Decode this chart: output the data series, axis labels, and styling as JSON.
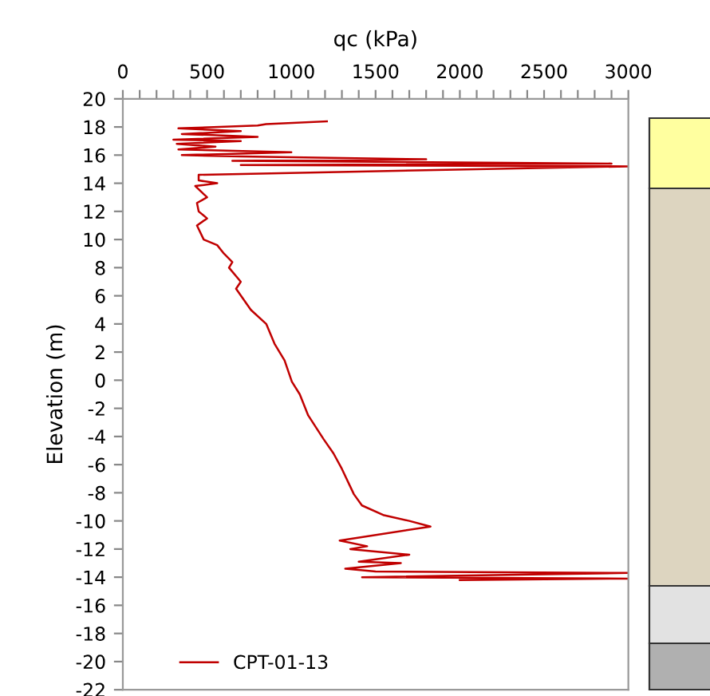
{
  "chart_data": {
    "type": "line",
    "xlabel": "qc (kPa)",
    "ylabel": "Elevation (m)",
    "series": [
      {
        "name": "CPT-01-13",
        "color": "#c00000",
        "x": [
          1211,
          850,
          800,
          330,
          700,
          350,
          800,
          300,
          700,
          320,
          550,
          330,
          1000,
          350,
          700,
          1800,
          650,
          2900,
          700,
          3000,
          2100,
          450,
          450,
          560,
          430,
          500,
          440,
          450,
          500,
          440,
          480,
          560,
          600,
          650,
          630,
          700,
          672,
          760,
          851,
          900,
          960,
          1003,
          1050,
          1100,
          1192,
          1250,
          1300,
          1371,
          1419,
          1550,
          1700,
          1826,
          1287,
          1450,
          1350,
          1700,
          1400,
          1650,
          1320,
          1500,
          3000,
          1420,
          3000,
          2000
        ],
        "values": [
          18.4,
          18.2,
          18.1,
          17.9,
          17.7,
          17.5,
          17.3,
          17.1,
          17.0,
          16.8,
          16.6,
          16.4,
          16.2,
          16.0,
          15.9,
          15.7,
          15.6,
          15.4,
          15.3,
          15.2,
          15.0,
          14.6,
          14.2,
          14.0,
          13.8,
          13.0,
          12.6,
          12.0,
          11.5,
          11.0,
          10.0,
          9.6,
          9.0,
          8.4,
          8.0,
          7.0,
          6.5,
          5.0,
          4.0,
          2.6,
          1.4,
          -0.1,
          -1.0,
          -2.5,
          -4.2,
          -5.2,
          -6.3,
          -8.1,
          -8.9,
          -9.6,
          -10.0,
          -10.4,
          -11.4,
          -11.8,
          -12.0,
          -12.4,
          -12.9,
          -13.0,
          -13.4,
          -13.6,
          -13.7,
          -14.0,
          -14.1,
          -14.2
        ]
      }
    ],
    "xlim": [
      0,
      3000
    ],
    "xticks": [
      0,
      {
        "value": 100,
        "label": null
      },
      {
        "value": 200,
        "label": null
      },
      {
        "value": 300,
        "label": null
      },
      {
        "value": 400,
        "label": null
      },
      500,
      {
        "value": 600,
        "label": null
      },
      {
        "value": 700,
        "label": null
      },
      {
        "value": 800,
        "label": null
      },
      {
        "value": 900,
        "label": null
      },
      1000,
      {
        "value": 1100,
        "label": null
      },
      {
        "value": 1200,
        "label": null
      },
      {
        "value": 1300,
        "label": null
      },
      {
        "value": 1400,
        "label": null
      },
      1500,
      {
        "value": 1600,
        "label": null
      },
      {
        "value": 1700,
        "label": null
      },
      {
        "value": 1800,
        "label": null
      },
      {
        "value": 1900,
        "label": null
      },
      2000,
      {
        "value": 2100,
        "label": null
      },
      {
        "value": 2200,
        "label": null
      },
      {
        "value": 2300,
        "label": null
      },
      {
        "value": 2400,
        "label": null
      },
      2500,
      {
        "value": 2600,
        "label": null
      },
      {
        "value": 2700,
        "label": null
      },
      {
        "value": 2800,
        "label": null
      },
      {
        "value": 2900,
        "label": null
      },
      3000
    ],
    "ylim": [
      -22,
      20
    ],
    "yticks": [
      -22,
      -20,
      -18,
      -16,
      -14,
      -12,
      -10,
      -8,
      -6,
      -4,
      -2,
      0,
      2,
      4,
      6,
      8,
      10,
      12,
      14,
      16,
      18,
      20
    ],
    "legend": "bottom left",
    "grid": false,
    "marker": "none",
    "line_style": "solid"
  }
}
